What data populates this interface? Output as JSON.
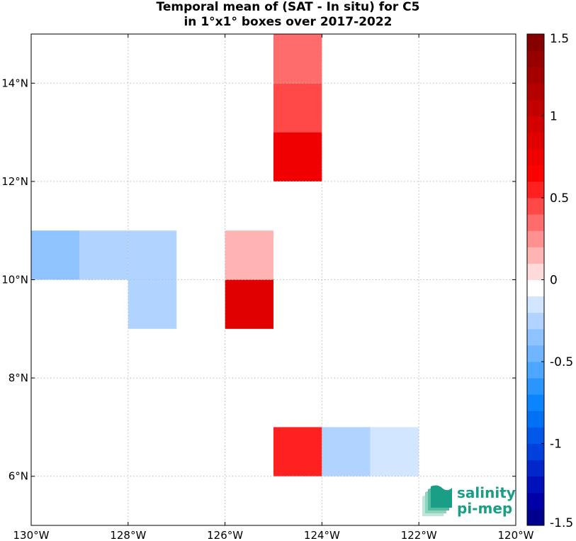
{
  "chart_data": {
    "type": "heatmap",
    "title_line1": "Temporal mean of (SAT - In situ) for C5",
    "title_line2": "in 1°x1° boxes over 2017-2022",
    "x_range": [
      -130,
      -120
    ],
    "y_range": [
      5,
      15
    ],
    "x_ticks": [
      {
        "value": -130,
        "label": "130°W"
      },
      {
        "value": -128,
        "label": "128°W"
      },
      {
        "value": -126,
        "label": "126°W"
      },
      {
        "value": -124,
        "label": "124°W"
      },
      {
        "value": -122,
        "label": "122°W"
      },
      {
        "value": -120,
        "label": "120°W"
      }
    ],
    "y_ticks": [
      {
        "value": 6,
        "label": "6°N"
      },
      {
        "value": 8,
        "label": "8°N"
      },
      {
        "value": 10,
        "label": "10°N"
      },
      {
        "value": 12,
        "label": "12°N"
      },
      {
        "value": 14,
        "label": "14°N"
      }
    ],
    "grid": true,
    "cells": [
      {
        "lon": -125,
        "lat": 14,
        "value": 0.3
      },
      {
        "lon": -125,
        "lat": 13,
        "value": 0.45
      },
      {
        "lon": -125,
        "lat": 12,
        "value": 0.75
      },
      {
        "lon": -130,
        "lat": 10,
        "value": -0.35
      },
      {
        "lon": -129,
        "lat": 10,
        "value": -0.25
      },
      {
        "lon": -128,
        "lat": 10,
        "value": -0.25
      },
      {
        "lon": -128,
        "lat": 9,
        "value": -0.25
      },
      {
        "lon": -126,
        "lat": 10,
        "value": 0.15
      },
      {
        "lon": -126,
        "lat": 9,
        "value": 0.9
      },
      {
        "lon": -125,
        "lat": 6,
        "value": 0.55
      },
      {
        "lon": -124,
        "lat": 6,
        "value": -0.25
      },
      {
        "lon": -123,
        "lat": 6,
        "value": -0.15
      }
    ],
    "colorbar": {
      "range": [
        -1.5,
        1.5
      ],
      "ticks": [
        {
          "value": 1.5,
          "label": "1.5"
        },
        {
          "value": 1,
          "label": "1"
        },
        {
          "value": 0.5,
          "label": "0.5"
        },
        {
          "value": 0,
          "label": "0"
        },
        {
          "value": -0.5,
          "label": "-0.5"
        },
        {
          "value": -1,
          "label": "-1"
        },
        {
          "value": -1.5,
          "label": "-1.5"
        }
      ],
      "colors": [
        "#00008f",
        "#0000a8",
        "#0010bb",
        "#0026cc",
        "#0040dd",
        "#0058ea",
        "#0070f5",
        "#0a85ff",
        "#2a95ff",
        "#4da6ff",
        "#6fb5ff",
        "#8fc3ff",
        "#b0d4ff",
        "#d2e6ff",
        "#ffffff",
        "#ffdada",
        "#ffb4b4",
        "#ff9090",
        "#ff6c6c",
        "#ff4848",
        "#ff2020",
        "#ff0000",
        "#f00000",
        "#e10000",
        "#d20000",
        "#c30000",
        "#b40000",
        "#a50000",
        "#960000",
        "#870000"
      ]
    }
  },
  "logo": {
    "line1": "salinity",
    "line2": "pi-mep",
    "color": "#1a9e86"
  }
}
